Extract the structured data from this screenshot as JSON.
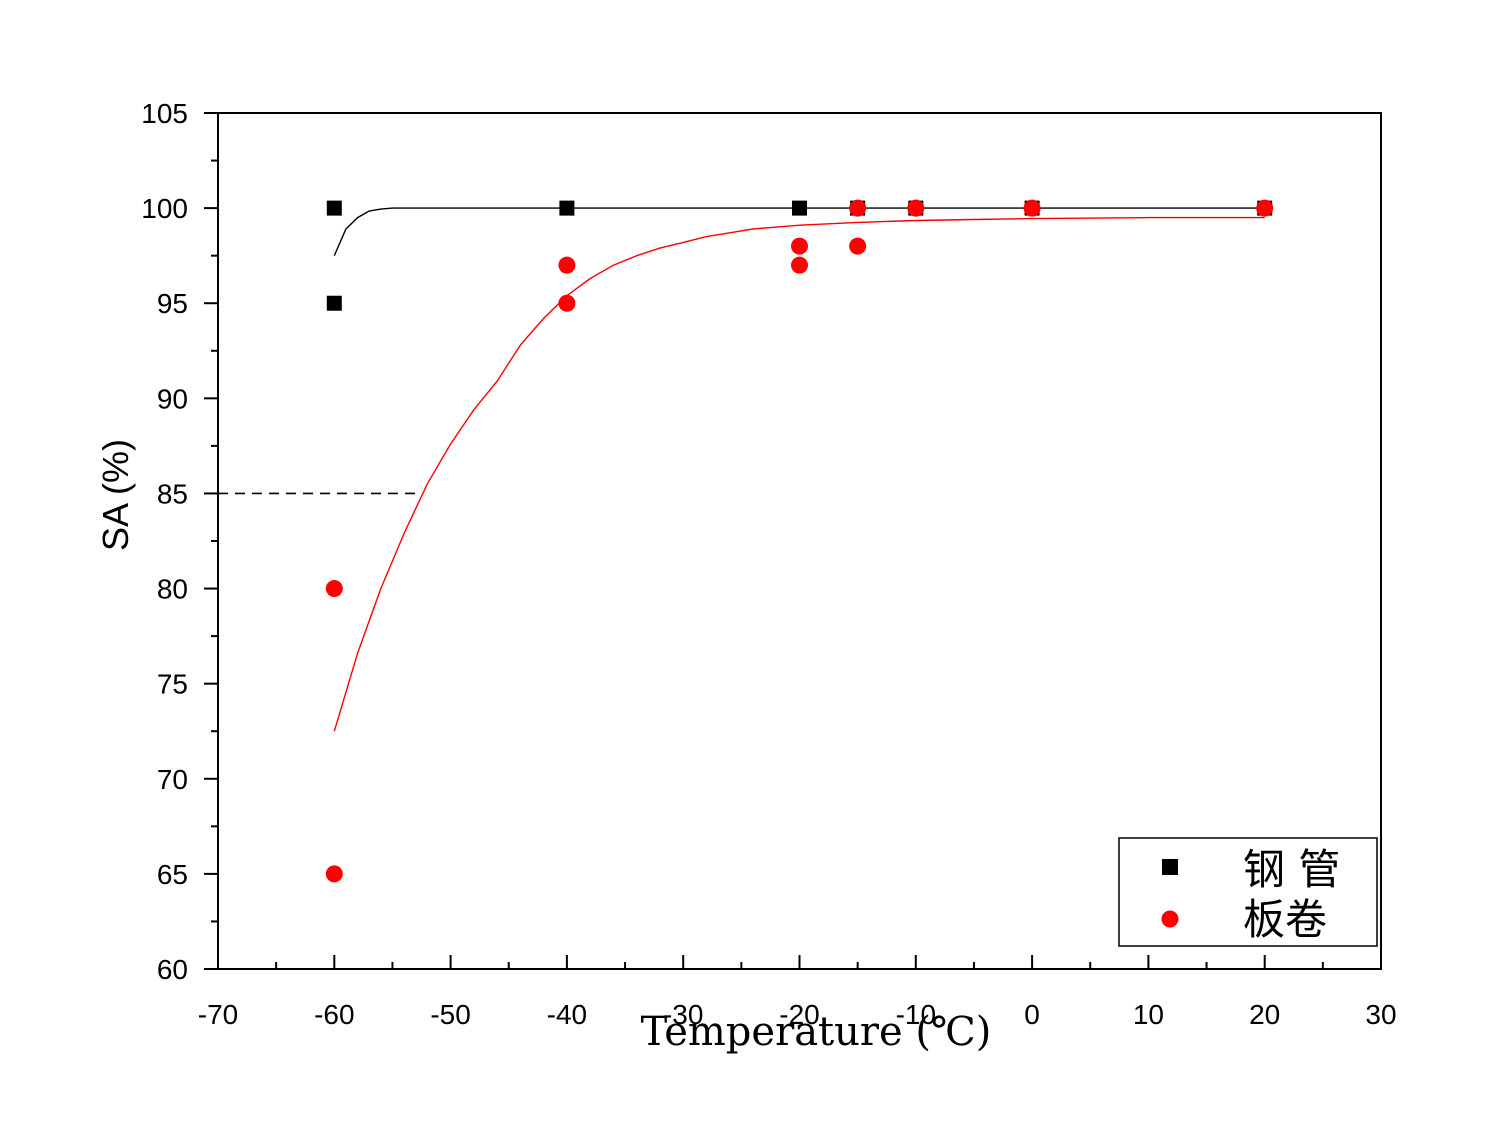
{
  "chart_data": {
    "type": "scatter",
    "xlabel": "Temperature (℃)",
    "ylabel": "SA (%)",
    "xlim": [
      -70,
      30
    ],
    "ylim": [
      60,
      105
    ],
    "x_ticks": [
      -70,
      -60,
      -50,
      -40,
      -30,
      -20,
      -10,
      0,
      10,
      20,
      30
    ],
    "y_ticks": [
      60,
      65,
      70,
      75,
      80,
      85,
      90,
      95,
      100,
      105
    ],
    "grid": false,
    "legend_position": "bottom-right",
    "reference_line": {
      "y": 85,
      "x_end": -52.5,
      "style": "dashed"
    },
    "series": [
      {
        "name": "钢 管",
        "marker": "square",
        "color": "#000000",
        "points": [
          {
            "x": -60,
            "y": 100
          },
          {
            "x": -60,
            "y": 95
          },
          {
            "x": -40,
            "y": 100
          },
          {
            "x": -20,
            "y": 100
          },
          {
            "x": -15,
            "y": 100
          },
          {
            "x": -10,
            "y": 100
          },
          {
            "x": 0,
            "y": 100
          },
          {
            "x": 20,
            "y": 100
          }
        ],
        "fit": {
          "x": [
            -60,
            -59,
            -58,
            -57,
            -56,
            -55,
            -50,
            -40,
            -20,
            0,
            20
          ],
          "y": [
            97.5,
            98.9,
            99.5,
            99.85,
            99.95,
            100,
            100,
            100,
            100,
            100,
            100
          ]
        }
      },
      {
        "name": "板卷",
        "marker": "circle",
        "color": "#ff0000",
        "points": [
          {
            "x": -60,
            "y": 80
          },
          {
            "x": -60,
            "y": 65
          },
          {
            "x": -40,
            "y": 97
          },
          {
            "x": -40,
            "y": 95
          },
          {
            "x": -20,
            "y": 98
          },
          {
            "x": -20,
            "y": 97
          },
          {
            "x": -15,
            "y": 100
          },
          {
            "x": -15,
            "y": 98
          },
          {
            "x": -10,
            "y": 100
          },
          {
            "x": 0,
            "y": 100
          },
          {
            "x": 20,
            "y": 100
          }
        ],
        "fit": {
          "x": [
            -60,
            -58,
            -56,
            -54,
            -52,
            -50,
            -48,
            -46,
            -44,
            -42,
            -40,
            -38,
            -36,
            -34,
            -32,
            -30,
            -28,
            -26,
            -24,
            -22,
            -20,
            -15,
            -10,
            -5,
            0,
            10,
            20
          ],
          "y": [
            72.5,
            76.6,
            80.0,
            82.9,
            85.5,
            87.6,
            89.4,
            90.9,
            92.8,
            94.2,
            95.4,
            96.3,
            97.0,
            97.5,
            97.9,
            98.2,
            98.5,
            98.7,
            98.9,
            99.0,
            99.1,
            99.25,
            99.35,
            99.4,
            99.45,
            99.5,
            99.5
          ]
        }
      }
    ]
  }
}
